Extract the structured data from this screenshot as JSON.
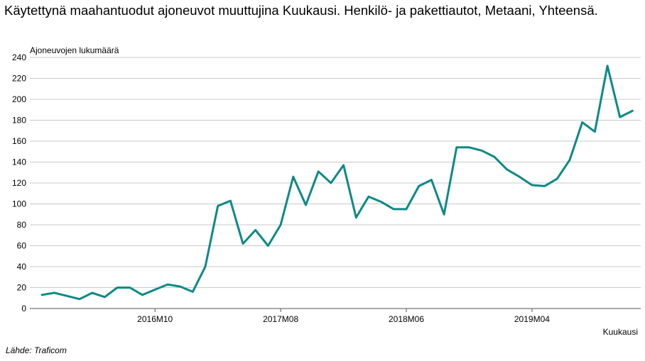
{
  "chart_data": {
    "type": "line",
    "title": "Käytettynä maahantuodut ajoneuvot muuttujina Kuukausi. Henkilö- ja pakettiautot, Metaani, Yhteensä.",
    "ylabel": "Ajoneuvojen lukumäärä",
    "xlabel": "Kuukausi",
    "ylim": [
      0,
      240
    ],
    "yticks": [
      0,
      20,
      40,
      60,
      80,
      100,
      120,
      140,
      160,
      180,
      200,
      220,
      240
    ],
    "x_tick_labels": [
      "2016M10",
      "2017M08",
      "2018M06",
      "2019M04"
    ],
    "grid": true,
    "legend": "none",
    "color": "#0b8a86",
    "x": [
      "2016M01",
      "2016M02",
      "2016M03",
      "2016M04",
      "2016M05",
      "2016M06",
      "2016M07",
      "2016M08",
      "2016M09",
      "2016M10",
      "2016M11",
      "2016M12",
      "2017M01",
      "2017M02",
      "2017M03",
      "2017M04",
      "2017M05",
      "2017M06",
      "2017M07",
      "2017M08",
      "2017M09",
      "2017M10",
      "2017M11",
      "2017M12",
      "2018M01",
      "2018M02",
      "2018M03",
      "2018M04",
      "2018M05",
      "2018M06",
      "2018M07",
      "2018M08",
      "2018M09",
      "2018M10",
      "2018M11",
      "2018M12",
      "2019M01",
      "2019M02",
      "2019M03",
      "2019M04",
      "2019M05",
      "2019M06",
      "2019M07",
      "2019M08",
      "2019M09",
      "2019M10",
      "2019M11",
      "2019M12"
    ],
    "series": [
      {
        "values": [
          13,
          15,
          12,
          9,
          15,
          11,
          20,
          20,
          13,
          18,
          23,
          21,
          16,
          40,
          98,
          103,
          62,
          75,
          60,
          80,
          126,
          99,
          131,
          120,
          137,
          87,
          107,
          102,
          95,
          95,
          117,
          123,
          90,
          154,
          154,
          151,
          145,
          133,
          126,
          118,
          117,
          124,
          142,
          178,
          169,
          232,
          183,
          189
        ]
      }
    ]
  },
  "source": "Lähde: Traficom"
}
